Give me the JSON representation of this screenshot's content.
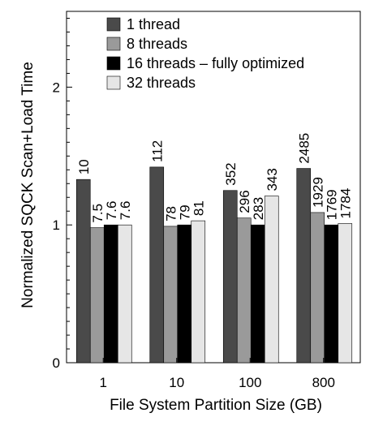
{
  "chart_data": {
    "type": "bar",
    "title": "",
    "xlabel": "File System Partition Size (GB)",
    "ylabel": "Normalized SQCK Scan+Load Time",
    "categories": [
      "1",
      "10",
      "100",
      "800"
    ],
    "ylim": [
      0,
      2.55
    ],
    "yticks": [
      "0",
      "1",
      "2"
    ],
    "grid": false,
    "legend_position": "top-left",
    "series": [
      {
        "name": "1 thread",
        "color": "#4a4a4a",
        "values": [
          1.33,
          1.42,
          1.25,
          1.41
        ],
        "labels": [
          "10",
          "112",
          "352",
          "2485"
        ]
      },
      {
        "name": "8 threads",
        "color": "#9a9a9a",
        "values": [
          0.98,
          0.99,
          1.05,
          1.09
        ],
        "labels": [
          "7.5",
          "78",
          "296",
          "1929"
        ]
      },
      {
        "name": "16 threads – fully optimized",
        "color": "#000000",
        "values": [
          1.0,
          1.0,
          1.0,
          1.0
        ],
        "labels": [
          "7.6",
          "79",
          "283",
          "1769"
        ]
      },
      {
        "name": "32 threads",
        "color": "#e6e6e6",
        "values": [
          1.0,
          1.03,
          1.21,
          1.01
        ],
        "labels": [
          "7.6",
          "81",
          "343",
          "1784"
        ]
      }
    ]
  }
}
